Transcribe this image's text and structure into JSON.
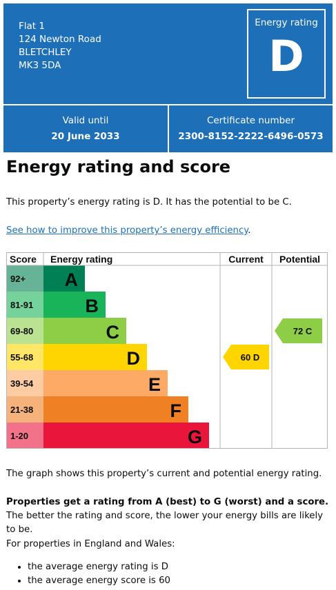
{
  "address": {
    "line1": "Flat 1",
    "line2": "124 Newton Road",
    "line3": "BLETCHLEY",
    "line4": "MK3 5DA"
  },
  "energy_rating_box": {
    "title": "Energy rating",
    "letter": "D"
  },
  "valid_until": {
    "label": "Valid until",
    "value": "20 June 2033"
  },
  "certificate": {
    "label": "Certificate number",
    "value": "2300-8152-2222-6496-0573"
  },
  "heading": "Energy rating and score",
  "intro": "This property’s energy rating is D. It has the potential to be C.",
  "improve_link": "See how to improve this property’s energy efficiency",
  "improve_link_suffix": ".",
  "chart_data": {
    "type": "table",
    "headers": {
      "score": "Score",
      "rating": "Energy rating",
      "current": "Current",
      "potential": "Potential"
    },
    "bands": [
      {
        "score": "92+",
        "letter": "A",
        "color": "#008054",
        "score_bg": "#66b398"
      },
      {
        "score": "81-91",
        "letter": "B",
        "color": "#19b459",
        "score_bg": "#75d29b"
      },
      {
        "score": "69-80",
        "letter": "C",
        "color": "#8dce46",
        "score_bg": "#bbe290"
      },
      {
        "score": "55-68",
        "letter": "D",
        "color": "#ffd500",
        "score_bg": "#ffe666"
      },
      {
        "score": "39-54",
        "letter": "E",
        "color": "#fcaa65",
        "score_bg": "#fdcca3"
      },
      {
        "score": "21-38",
        "letter": "F",
        "color": "#ef8023",
        "score_bg": "#f5b37b"
      },
      {
        "score": "1-20",
        "letter": "G",
        "color": "#e9153b",
        "score_bg": "#f27389"
      }
    ],
    "current": {
      "score": 60,
      "letter": "D",
      "label": "60 D",
      "color": "#ffd500"
    },
    "potential": {
      "score": 72,
      "letter": "C",
      "label": "72 C",
      "color": "#8dce46"
    }
  },
  "graph_caption": "The graph shows this property’s current and potential energy rating.",
  "rating_info_bold": "Properties get a rating from A (best) to G (worst) and a score.",
  "rating_info_rest": " The better the rating and score, the lower your energy bills are likely to be.",
  "england_wales": "For properties in England and Wales:",
  "bullets": [
    "the average energy rating is D",
    "the average energy score is 60"
  ]
}
